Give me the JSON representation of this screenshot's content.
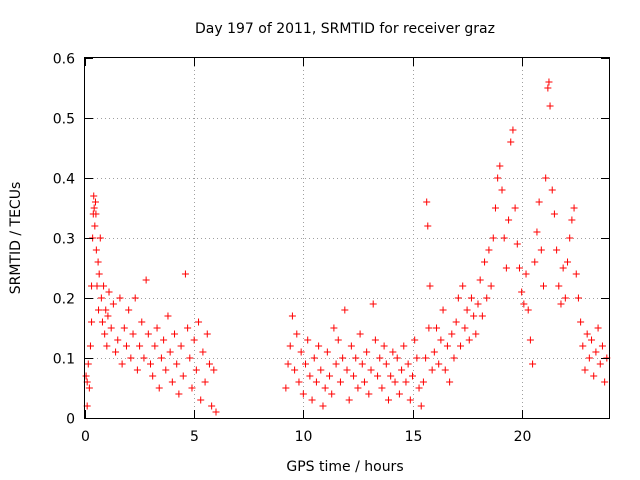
{
  "chart_data": {
    "type": "scatter",
    "title": "Day 197 of 2011, SRMTID for receiver graz",
    "xlabel": "GPS time / hours",
    "ylabel": "SRMTID / TECUs",
    "xlim": [
      0,
      24
    ],
    "ylim": [
      0,
      0.6
    ],
    "xticks": [
      0,
      5,
      10,
      15,
      20
    ],
    "xtick_labels": [
      "0",
      "5",
      "10",
      "15",
      "20"
    ],
    "yticks": [
      0,
      0.1,
      0.2,
      0.3,
      0.4,
      0.5,
      0.6
    ],
    "ytick_labels": [
      "0",
      "0.1",
      "0.2",
      "0.3",
      "0.4",
      "0.5",
      "0.6"
    ],
    "grid": true,
    "marker": "+",
    "marker_color": "#ff0000",
    "series": [
      {
        "name": "SRMTID",
        "points": [
          [
            0.05,
            0.07
          ],
          [
            0.1,
            0.06
          ],
          [
            0.15,
            0.09
          ],
          [
            0.2,
            0.05
          ],
          [
            0.1,
            0.02
          ],
          [
            0.25,
            0.12
          ],
          [
            0.3,
            0.16
          ],
          [
            0.3,
            0.22
          ],
          [
            0.35,
            0.3
          ],
          [
            0.38,
            0.34
          ],
          [
            0.4,
            0.37
          ],
          [
            0.42,
            0.35
          ],
          [
            0.45,
            0.32
          ],
          [
            0.48,
            0.36
          ],
          [
            0.5,
            0.34
          ],
          [
            0.52,
            0.28
          ],
          [
            0.55,
            0.22
          ],
          [
            0.6,
            0.26
          ],
          [
            0.62,
            0.18
          ],
          [
            0.65,
            0.24
          ],
          [
            0.7,
            0.3
          ],
          [
            0.75,
            0.2
          ],
          [
            0.8,
            0.16
          ],
          [
            0.85,
            0.22
          ],
          [
            0.9,
            0.14
          ],
          [
            0.95,
            0.18
          ],
          [
            1.0,
            0.12
          ],
          [
            1.05,
            0.17
          ],
          [
            1.1,
            0.21
          ],
          [
            1.2,
            0.15
          ],
          [
            1.3,
            0.19
          ],
          [
            1.4,
            0.11
          ],
          [
            1.5,
            0.13
          ],
          [
            1.6,
            0.2
          ],
          [
            1.7,
            0.09
          ],
          [
            1.8,
            0.15
          ],
          [
            1.9,
            0.12
          ],
          [
            2.0,
            0.18
          ],
          [
            2.1,
            0.1
          ],
          [
            2.2,
            0.14
          ],
          [
            2.3,
            0.2
          ],
          [
            2.4,
            0.08
          ],
          [
            2.5,
            0.12
          ],
          [
            2.6,
            0.16
          ],
          [
            2.7,
            0.1
          ],
          [
            2.8,
            0.23
          ],
          [
            2.9,
            0.14
          ],
          [
            3.0,
            0.09
          ],
          [
            3.1,
            0.07
          ],
          [
            3.2,
            0.12
          ],
          [
            3.3,
            0.15
          ],
          [
            3.4,
            0.05
          ],
          [
            3.5,
            0.1
          ],
          [
            3.6,
            0.13
          ],
          [
            3.7,
            0.08
          ],
          [
            3.8,
            0.17
          ],
          [
            3.9,
            0.11
          ],
          [
            4.0,
            0.06
          ],
          [
            4.1,
            0.14
          ],
          [
            4.2,
            0.09
          ],
          [
            4.3,
            0.04
          ],
          [
            4.4,
            0.12
          ],
          [
            4.5,
            0.07
          ],
          [
            4.6,
            0.24
          ],
          [
            4.7,
            0.15
          ],
          [
            4.8,
            0.1
          ],
          [
            4.9,
            0.05
          ],
          [
            5.0,
            0.13
          ],
          [
            5.1,
            0.08
          ],
          [
            5.2,
            0.16
          ],
          [
            5.3,
            0.03
          ],
          [
            5.4,
            0.11
          ],
          [
            5.5,
            0.06
          ],
          [
            5.6,
            0.14
          ],
          [
            5.7,
            0.09
          ],
          [
            5.8,
            0.02
          ],
          [
            5.9,
            0.08
          ],
          [
            6.0,
            0.01
          ],
          [
            9.2,
            0.05
          ],
          [
            9.3,
            0.09
          ],
          [
            9.4,
            0.12
          ],
          [
            9.5,
            0.17
          ],
          [
            9.6,
            0.08
          ],
          [
            9.7,
            0.14
          ],
          [
            9.8,
            0.06
          ],
          [
            9.9,
            0.11
          ],
          [
            10.0,
            0.04
          ],
          [
            10.1,
            0.09
          ],
          [
            10.2,
            0.13
          ],
          [
            10.3,
            0.07
          ],
          [
            10.4,
            0.03
          ],
          [
            10.5,
            0.1
          ],
          [
            10.6,
            0.06
          ],
          [
            10.7,
            0.12
          ],
          [
            10.8,
            0.08
          ],
          [
            10.9,
            0.02
          ],
          [
            11.0,
            0.05
          ],
          [
            11.1,
            0.11
          ],
          [
            11.2,
            0.07
          ],
          [
            11.3,
            0.04
          ],
          [
            11.4,
            0.15
          ],
          [
            11.5,
            0.09
          ],
          [
            11.6,
            0.13
          ],
          [
            11.7,
            0.06
          ],
          [
            11.8,
            0.1
          ],
          [
            11.9,
            0.18
          ],
          [
            12.0,
            0.08
          ],
          [
            12.1,
            0.03
          ],
          [
            12.2,
            0.12
          ],
          [
            12.3,
            0.07
          ],
          [
            12.4,
            0.1
          ],
          [
            12.5,
            0.05
          ],
          [
            12.6,
            0.14
          ],
          [
            12.7,
            0.09
          ],
          [
            12.8,
            0.06
          ],
          [
            12.9,
            0.11
          ],
          [
            13.0,
            0.04
          ],
          [
            13.1,
            0.08
          ],
          [
            13.2,
            0.19
          ],
          [
            13.3,
            0.13
          ],
          [
            13.4,
            0.07
          ],
          [
            13.5,
            0.1
          ],
          [
            13.6,
            0.05
          ],
          [
            13.7,
            0.12
          ],
          [
            13.8,
            0.09
          ],
          [
            13.9,
            0.03
          ],
          [
            14.0,
            0.07
          ],
          [
            14.1,
            0.11
          ],
          [
            14.2,
            0.06
          ],
          [
            14.3,
            0.1
          ],
          [
            14.4,
            0.04
          ],
          [
            14.5,
            0.08
          ],
          [
            14.6,
            0.12
          ],
          [
            14.7,
            0.06
          ],
          [
            14.8,
            0.09
          ],
          [
            14.9,
            0.03
          ],
          [
            15.0,
            0.07
          ],
          [
            15.1,
            0.13
          ],
          [
            15.2,
            0.1
          ],
          [
            15.3,
            0.05
          ],
          [
            15.4,
            0.02
          ],
          [
            15.5,
            0.06
          ],
          [
            15.6,
            0.1
          ],
          [
            15.65,
            0.36
          ],
          [
            15.7,
            0.32
          ],
          [
            15.75,
            0.15
          ],
          [
            15.8,
            0.22
          ],
          [
            15.9,
            0.08
          ],
          [
            16.0,
            0.11
          ],
          [
            16.1,
            0.15
          ],
          [
            16.2,
            0.09
          ],
          [
            16.3,
            0.13
          ],
          [
            16.4,
            0.18
          ],
          [
            16.5,
            0.08
          ],
          [
            16.6,
            0.12
          ],
          [
            16.7,
            0.06
          ],
          [
            16.8,
            0.14
          ],
          [
            16.9,
            0.1
          ],
          [
            17.0,
            0.16
          ],
          [
            17.1,
            0.2
          ],
          [
            17.2,
            0.12
          ],
          [
            17.3,
            0.22
          ],
          [
            17.4,
            0.15
          ],
          [
            17.5,
            0.18
          ],
          [
            17.6,
            0.13
          ],
          [
            17.7,
            0.2
          ],
          [
            17.8,
            0.17
          ],
          [
            17.9,
            0.14
          ],
          [
            18.0,
            0.19
          ],
          [
            18.1,
            0.23
          ],
          [
            18.2,
            0.17
          ],
          [
            18.3,
            0.26
          ],
          [
            18.4,
            0.2
          ],
          [
            18.5,
            0.28
          ],
          [
            18.6,
            0.22
          ],
          [
            18.7,
            0.3
          ],
          [
            18.8,
            0.35
          ],
          [
            18.9,
            0.4
          ],
          [
            19.0,
            0.42
          ],
          [
            19.1,
            0.38
          ],
          [
            19.2,
            0.3
          ],
          [
            19.3,
            0.25
          ],
          [
            19.4,
            0.33
          ],
          [
            19.5,
            0.46
          ],
          [
            19.6,
            0.48
          ],
          [
            19.7,
            0.35
          ],
          [
            19.8,
            0.29
          ],
          [
            19.9,
            0.25
          ],
          [
            20.0,
            0.21
          ],
          [
            20.1,
            0.19
          ],
          [
            20.2,
            0.24
          ],
          [
            20.3,
            0.18
          ],
          [
            20.4,
            0.13
          ],
          [
            20.5,
            0.09
          ],
          [
            20.6,
            0.26
          ],
          [
            20.7,
            0.31
          ],
          [
            20.8,
            0.36
          ],
          [
            20.9,
            0.28
          ],
          [
            21.0,
            0.22
          ],
          [
            21.1,
            0.4
          ],
          [
            21.2,
            0.55
          ],
          [
            21.25,
            0.56
          ],
          [
            21.3,
            0.52
          ],
          [
            21.4,
            0.38
          ],
          [
            21.5,
            0.34
          ],
          [
            21.6,
            0.28
          ],
          [
            21.7,
            0.22
          ],
          [
            21.8,
            0.19
          ],
          [
            21.9,
            0.25
          ],
          [
            22.0,
            0.2
          ],
          [
            22.1,
            0.26
          ],
          [
            22.2,
            0.3
          ],
          [
            22.3,
            0.33
          ],
          [
            22.4,
            0.35
          ],
          [
            22.5,
            0.24
          ],
          [
            22.6,
            0.2
          ],
          [
            22.7,
            0.16
          ],
          [
            22.8,
            0.12
          ],
          [
            22.9,
            0.08
          ],
          [
            23.0,
            0.14
          ],
          [
            23.1,
            0.1
          ],
          [
            23.2,
            0.13
          ],
          [
            23.3,
            0.07
          ],
          [
            23.4,
            0.11
          ],
          [
            23.5,
            0.15
          ],
          [
            23.6,
            0.09
          ],
          [
            23.7,
            0.12
          ],
          [
            23.8,
            0.06
          ],
          [
            23.9,
            0.1
          ]
        ]
      }
    ]
  }
}
